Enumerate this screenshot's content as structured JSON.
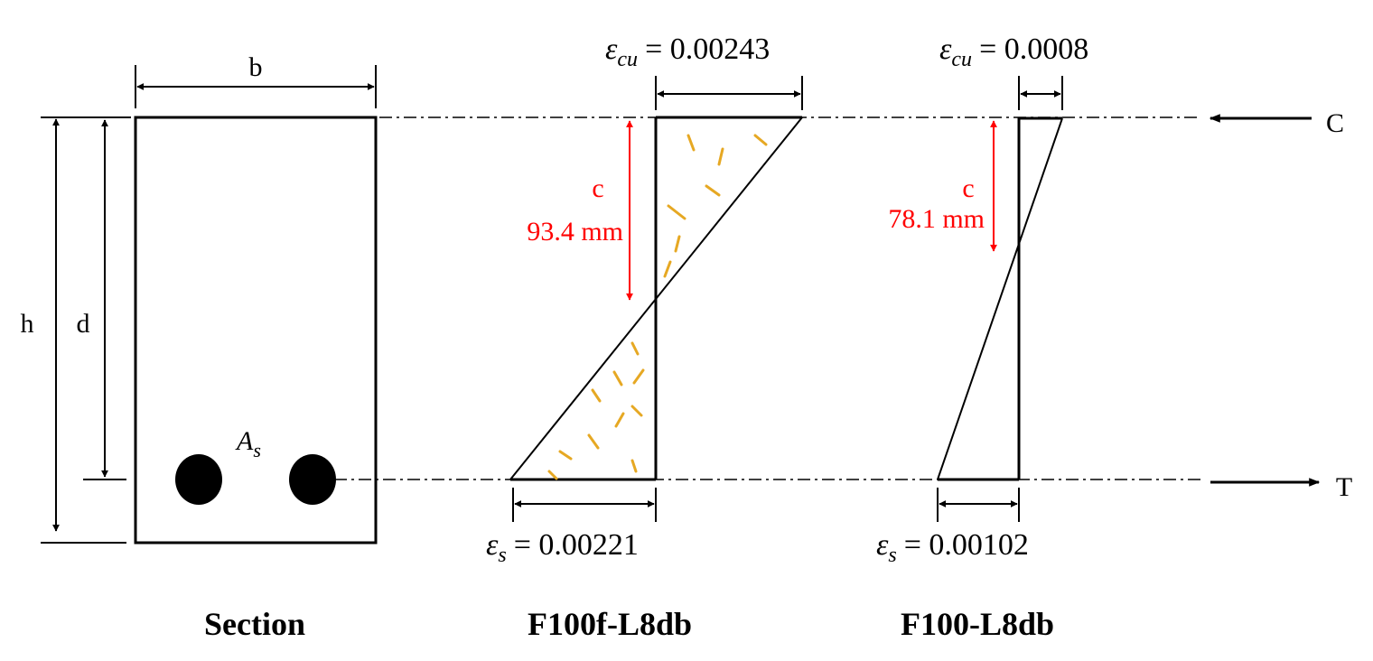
{
  "section": {
    "label_b": "b",
    "label_h": "h",
    "label_d": "d",
    "label_As_main": "A",
    "label_As_sub": "s",
    "caption": "Section"
  },
  "forces": {
    "compression": "C",
    "tension": "T"
  },
  "f100f": {
    "ecu_text": "= 0.00243",
    "c_label": "c",
    "c_value": "93.4 mm",
    "es_text": "= 0.00221",
    "caption": "F100f-L8db"
  },
  "f100": {
    "ecu_text": "= 0.0008",
    "c_label": "c",
    "c_value": "78.1 mm",
    "es_text": "= 0.00102",
    "caption": "F100-L8db"
  },
  "symbols": {
    "epsilon": "ε",
    "sub_cu": "cu",
    "sub_s": "s"
  },
  "colors": {
    "dimension_red": "#ff0000",
    "fiber": "#e6a823"
  }
}
